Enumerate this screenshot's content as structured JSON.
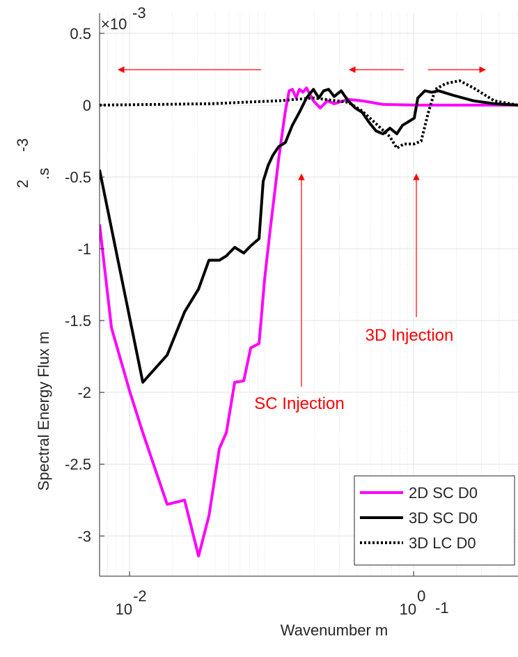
{
  "chart_data": {
    "type": "line",
    "x_scale": "log",
    "grid": true,
    "minor_grid": true,
    "xlabel": {
      "text": "Wavenumber m",
      "exponent": "-1"
    },
    "ylabel": {
      "text": "Spectral Energy Flux m",
      "parts": [
        "2",
        ".s",
        "-3"
      ]
    },
    "y_multiplier": {
      "text": "×10",
      "exponent": "-3"
    },
    "xlim": [
      0.00615,
      5.43
    ],
    "ylim": [
      -3.28,
      0.64
    ],
    "xticks": [
      {
        "value": 0.01,
        "label": "10",
        "exponent": "-2"
      },
      {
        "value": 1,
        "label": "10",
        "exponent": "0"
      }
    ],
    "yticks": [
      0.5,
      0,
      -0.5,
      -1,
      -1.5,
      -2,
      -2.5,
      -3
    ],
    "legend": "lower right",
    "annotations": [
      "SC Injection",
      "3D Injection"
    ],
    "series": [
      {
        "name": "2D SC D0",
        "color": "#ff00ff",
        "style": "solid",
        "x": [
          0.00615,
          0.00746,
          0.01,
          0.0124,
          0.0184,
          0.0244,
          0.0306,
          0.0362,
          0.0429,
          0.048,
          0.055,
          0.0637,
          0.0713,
          0.0816,
          0.0893,
          0.0977,
          0.106,
          0.112,
          0.119,
          0.125,
          0.133,
          0.14,
          0.149,
          0.157,
          0.166,
          0.176,
          0.197,
          0.22,
          0.247,
          0.276,
          0.346,
          0.434,
          0.609,
          1.07,
          3.31,
          5.43
        ],
        "values": [
          -0.83,
          -1.55,
          -1.99,
          -2.28,
          -2.78,
          -2.75,
          -3.14,
          -2.86,
          -2.39,
          -2.28,
          -1.93,
          -1.92,
          -1.69,
          -1.66,
          -1.21,
          -0.87,
          -0.58,
          -0.38,
          -0.19,
          -0.04,
          0.1,
          0.11,
          0.05,
          0.11,
          0.09,
          0.12,
          0.03,
          -0.02,
          0.03,
          0.01,
          0.04,
          0.03,
          0.005,
          0,
          0,
          0
        ]
      },
      {
        "name": "3D SC D0",
        "color": "#000000",
        "style": "solid",
        "x": [
          0.00615,
          0.0124,
          0.0184,
          0.0244,
          0.0306,
          0.0362,
          0.0429,
          0.048,
          0.055,
          0.0637,
          0.0713,
          0.0816,
          0.0873,
          0.0945,
          0.102,
          0.112,
          0.125,
          0.14,
          0.157,
          0.176,
          0.197,
          0.215,
          0.233,
          0.252,
          0.276,
          0.309,
          0.346,
          0.388,
          0.434,
          0.486,
          0.544,
          0.609,
          0.681,
          0.762,
          0.835,
          0.903,
          1.01,
          1.07,
          1.2,
          1.34,
          1.5,
          1.88,
          2.64,
          3.7,
          5.43
        ],
        "values": [
          -0.45,
          -1.93,
          -1.74,
          -1.44,
          -1.28,
          -1.08,
          -1.08,
          -1.05,
          -0.99,
          -1.03,
          -0.98,
          -0.93,
          -0.53,
          -0.42,
          -0.35,
          -0.29,
          -0.26,
          -0.14,
          -0.05,
          0.05,
          0.11,
          0.05,
          0.1,
          0.11,
          0.06,
          0.1,
          0.03,
          -0.02,
          -0.05,
          -0.12,
          -0.18,
          -0.2,
          -0.16,
          -0.2,
          -0.14,
          -0.12,
          -0.09,
          0.05,
          0.1,
          0.09,
          0.1,
          0.07,
          0.03,
          0.01,
          0
        ]
      },
      {
        "name": "3D LC D0",
        "color": "#000000",
        "style": "dotted",
        "x": [
          0.00615,
          0.0362,
          0.112,
          0.197,
          0.346,
          0.434,
          0.544,
          0.681,
          0.762,
          0.854,
          1.01,
          1.13,
          1.27,
          1.42,
          1.68,
          2.11,
          2.64,
          3.7,
          5.43
        ],
        "values": [
          0,
          0.01,
          0.03,
          0.05,
          0.02,
          -0.04,
          -0.13,
          -0.22,
          -0.3,
          -0.27,
          -0.27,
          -0.25,
          -0.05,
          0.11,
          0.15,
          0.17,
          0.12,
          0.03,
          0
        ]
      }
    ]
  }
}
